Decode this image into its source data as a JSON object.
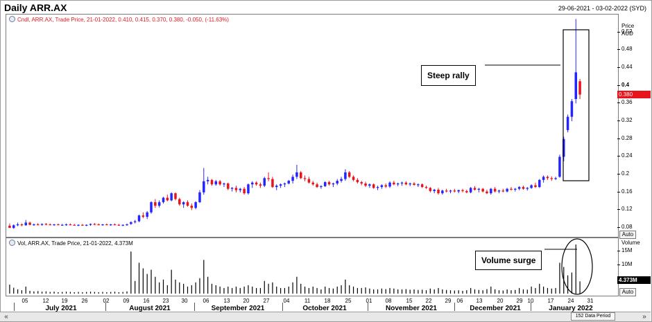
{
  "header": {
    "title": "Daily ARR.AX",
    "date_range": "29-06-2021 - 03-02-2022 (SYD)"
  },
  "price_panel": {
    "legend": "Cndl, ARR.AX, Trade Price, 21-01-2022, 0.410, 0.415, 0.370, 0.380, -0.050, (-11.63%)",
    "axis_title_1": "Price",
    "axis_title_2": "AUD",
    "current_price_label": "0.380",
    "auto_label": "Auto",
    "y_ticks": [
      {
        "v": 0.52,
        "label": "0.52"
      },
      {
        "v": 0.48,
        "label": "0.48"
      },
      {
        "v": 0.44,
        "label": "0.44"
      },
      {
        "v": 0.4,
        "label": "0.4"
      },
      {
        "v": 0.36,
        "label": "0.36"
      },
      {
        "v": 0.32,
        "label": "0.32"
      },
      {
        "v": 0.28,
        "label": "0.28"
      },
      {
        "v": 0.24,
        "label": "0.24"
      },
      {
        "v": 0.2,
        "label": "0.2"
      },
      {
        "v": 0.16,
        "label": "0.16"
      },
      {
        "v": 0.12,
        "label": "0.12"
      },
      {
        "v": 0.08,
        "label": "0.08"
      }
    ],
    "annotation": "Steep rally"
  },
  "volume_panel": {
    "legend": "Vol, ARR.AX, Trade Price, 21-01-2022, 4.373M",
    "axis_title": "Volume",
    "y_ticks": [
      {
        "v": 15,
        "label": "15M"
      },
      {
        "v": 10,
        "label": "10M"
      }
    ],
    "current_volume_label": "4.373M",
    "auto_label": "Auto",
    "annotation": "Volume surge"
  },
  "x_axis": {
    "day_labels": [
      "05",
      "12",
      "19",
      "26",
      "02",
      "09",
      "16",
      "23",
      "30",
      "06",
      "13",
      "20",
      "27",
      "04",
      "11",
      "18",
      "25",
      "01",
      "08",
      "15",
      "22",
      "29",
      "06",
      "13",
      "20",
      "29",
      "10",
      "17",
      "24",
      "31"
    ],
    "month_labels": [
      "July 2021",
      "August 2021",
      "September 2021",
      "October 2021",
      "November 2021",
      "December 2021",
      "January 2022"
    ]
  },
  "status_bar": {
    "period_label": "152 Data Period",
    "scroll_left": "«",
    "scroll_right": "»"
  },
  "colors": {
    "up": "#2424ff",
    "down": "#e8141c",
    "last_price": "#e8141c"
  },
  "chart_data": {
    "type": "candlestick",
    "ylim": [
      0.06,
      0.56
    ],
    "volume_ylim_millions": [
      0,
      19
    ],
    "candles": [
      {
        "o": 0.085,
        "h": 0.09,
        "l": 0.082,
        "c": 0.08,
        "v": 3.2
      },
      {
        "o": 0.08,
        "h": 0.088,
        "l": 0.078,
        "c": 0.086,
        "v": 2.1
      },
      {
        "o": 0.086,
        "h": 0.092,
        "l": 0.084,
        "c": 0.088,
        "v": 1.5
      },
      {
        "o": 0.088,
        "h": 0.09,
        "l": 0.084,
        "c": 0.086,
        "v": 1.2
      },
      {
        "o": 0.086,
        "h": 0.098,
        "l": 0.085,
        "c": 0.092,
        "v": 2.5
      },
      {
        "o": 0.092,
        "h": 0.094,
        "l": 0.086,
        "c": 0.087,
        "v": 1.0
      },
      {
        "o": 0.087,
        "h": 0.09,
        "l": 0.085,
        "c": 0.088,
        "v": 0.8
      },
      {
        "o": 0.088,
        "h": 0.091,
        "l": 0.086,
        "c": 0.087,
        "v": 0.9
      },
      {
        "o": 0.087,
        "h": 0.09,
        "l": 0.085,
        "c": 0.089,
        "v": 0.7
      },
      {
        "o": 0.089,
        "h": 0.091,
        "l": 0.086,
        "c": 0.088,
        "v": 0.8
      },
      {
        "o": 0.088,
        "h": 0.09,
        "l": 0.086,
        "c": 0.087,
        "v": 0.6
      },
      {
        "o": 0.087,
        "h": 0.089,
        "l": 0.085,
        "c": 0.088,
        "v": 0.7
      },
      {
        "o": 0.088,
        "h": 0.09,
        "l": 0.086,
        "c": 0.087,
        "v": 0.5
      },
      {
        "o": 0.087,
        "h": 0.089,
        "l": 0.085,
        "c": 0.087,
        "v": 0.6
      },
      {
        "o": 0.087,
        "h": 0.09,
        "l": 0.085,
        "c": 0.088,
        "v": 0.7
      },
      {
        "o": 0.088,
        "h": 0.09,
        "l": 0.086,
        "c": 0.087,
        "v": 0.6
      },
      {
        "o": 0.087,
        "h": 0.089,
        "l": 0.085,
        "c": 0.086,
        "v": 0.5
      },
      {
        "o": 0.086,
        "h": 0.088,
        "l": 0.084,
        "c": 0.087,
        "v": 0.6
      },
      {
        "o": 0.087,
        "h": 0.089,
        "l": 0.085,
        "c": 0.086,
        "v": 0.5
      },
      {
        "o": 0.086,
        "h": 0.088,
        "l": 0.084,
        "c": 0.087,
        "v": 0.6
      },
      {
        "o": 0.087,
        "h": 0.09,
        "l": 0.085,
        "c": 0.089,
        "v": 0.7
      },
      {
        "o": 0.089,
        "h": 0.091,
        "l": 0.086,
        "c": 0.088,
        "v": 0.6
      },
      {
        "o": 0.088,
        "h": 0.09,
        "l": 0.086,
        "c": 0.087,
        "v": 0.5
      },
      {
        "o": 0.087,
        "h": 0.089,
        "l": 0.085,
        "c": 0.088,
        "v": 0.6
      },
      {
        "o": 0.088,
        "h": 0.09,
        "l": 0.086,
        "c": 0.087,
        "v": 0.5
      },
      {
        "o": 0.087,
        "h": 0.089,
        "l": 0.085,
        "c": 0.088,
        "v": 0.6
      },
      {
        "o": 0.088,
        "h": 0.09,
        "l": 0.086,
        "c": 0.087,
        "v": 0.7
      },
      {
        "o": 0.087,
        "h": 0.089,
        "l": 0.085,
        "c": 0.086,
        "v": 0.5
      },
      {
        "o": 0.086,
        "h": 0.088,
        "l": 0.084,
        "c": 0.087,
        "v": 0.6
      },
      {
        "o": 0.087,
        "h": 0.09,
        "l": 0.085,
        "c": 0.088,
        "v": 0.8
      },
      {
        "o": 0.089,
        "h": 0.095,
        "l": 0.087,
        "c": 0.093,
        "v": 15.0
      },
      {
        "o": 0.093,
        "h": 0.098,
        "l": 0.09,
        "c": 0.095,
        "v": 4.5
      },
      {
        "o": 0.095,
        "h": 0.11,
        "l": 0.093,
        "c": 0.108,
        "v": 11.0
      },
      {
        "o": 0.108,
        "h": 0.115,
        "l": 0.102,
        "c": 0.105,
        "v": 9.0
      },
      {
        "o": 0.105,
        "h": 0.118,
        "l": 0.1,
        "c": 0.115,
        "v": 7.0
      },
      {
        "o": 0.115,
        "h": 0.14,
        "l": 0.112,
        "c": 0.138,
        "v": 8.5
      },
      {
        "o": 0.138,
        "h": 0.145,
        "l": 0.125,
        "c": 0.13,
        "v": 6.0
      },
      {
        "o": 0.13,
        "h": 0.142,
        "l": 0.126,
        "c": 0.138,
        "v": 4.0
      },
      {
        "o": 0.138,
        "h": 0.15,
        "l": 0.135,
        "c": 0.148,
        "v": 5.0
      },
      {
        "o": 0.148,
        "h": 0.155,
        "l": 0.14,
        "c": 0.142,
        "v": 3.0
      },
      {
        "o": 0.142,
        "h": 0.16,
        "l": 0.14,
        "c": 0.158,
        "v": 8.5
      },
      {
        "o": 0.158,
        "h": 0.16,
        "l": 0.142,
        "c": 0.145,
        "v": 5.0
      },
      {
        "o": 0.145,
        "h": 0.148,
        "l": 0.13,
        "c": 0.133,
        "v": 4.0
      },
      {
        "o": 0.133,
        "h": 0.14,
        "l": 0.125,
        "c": 0.138,
        "v": 3.5
      },
      {
        "o": 0.138,
        "h": 0.142,
        "l": 0.128,
        "c": 0.13,
        "v": 2.5
      },
      {
        "o": 0.13,
        "h": 0.135,
        "l": 0.12,
        "c": 0.125,
        "v": 3.0
      },
      {
        "o": 0.125,
        "h": 0.14,
        "l": 0.122,
        "c": 0.138,
        "v": 4.0
      },
      {
        "o": 0.138,
        "h": 0.165,
        "l": 0.136,
        "c": 0.16,
        "v": 5.5
      },
      {
        "o": 0.16,
        "h": 0.215,
        "l": 0.155,
        "c": 0.185,
        "v": 12.0
      },
      {
        "o": 0.185,
        "h": 0.195,
        "l": 0.178,
        "c": 0.188,
        "v": 6.0
      },
      {
        "o": 0.188,
        "h": 0.19,
        "l": 0.175,
        "c": 0.178,
        "v": 3.5
      },
      {
        "o": 0.178,
        "h": 0.188,
        "l": 0.175,
        "c": 0.185,
        "v": 3.0
      },
      {
        "o": 0.185,
        "h": 0.188,
        "l": 0.175,
        "c": 0.178,
        "v": 2.5
      },
      {
        "o": 0.178,
        "h": 0.182,
        "l": 0.172,
        "c": 0.18,
        "v": 2.0
      },
      {
        "o": 0.18,
        "h": 0.182,
        "l": 0.165,
        "c": 0.168,
        "v": 2.5
      },
      {
        "o": 0.168,
        "h": 0.172,
        "l": 0.162,
        "c": 0.17,
        "v": 2.0
      },
      {
        "o": 0.17,
        "h": 0.175,
        "l": 0.16,
        "c": 0.165,
        "v": 2.5
      },
      {
        "o": 0.165,
        "h": 0.17,
        "l": 0.16,
        "c": 0.168,
        "v": 2.0
      },
      {
        "o": 0.168,
        "h": 0.172,
        "l": 0.155,
        "c": 0.158,
        "v": 2.5
      },
      {
        "o": 0.158,
        "h": 0.18,
        "l": 0.155,
        "c": 0.178,
        "v": 3.0
      },
      {
        "o": 0.178,
        "h": 0.185,
        "l": 0.17,
        "c": 0.182,
        "v": 2.5
      },
      {
        "o": 0.182,
        "h": 0.185,
        "l": 0.175,
        "c": 0.178,
        "v": 2.0
      },
      {
        "o": 0.178,
        "h": 0.182,
        "l": 0.17,
        "c": 0.175,
        "v": 2.0
      },
      {
        "o": 0.175,
        "h": 0.195,
        "l": 0.172,
        "c": 0.192,
        "v": 4.5
      },
      {
        "o": 0.192,
        "h": 0.205,
        "l": 0.185,
        "c": 0.19,
        "v": 3.5
      },
      {
        "o": 0.19,
        "h": 0.195,
        "l": 0.17,
        "c": 0.172,
        "v": 4.0
      },
      {
        "o": 0.172,
        "h": 0.178,
        "l": 0.165,
        "c": 0.175,
        "v": 2.5
      },
      {
        "o": 0.175,
        "h": 0.18,
        "l": 0.17,
        "c": 0.178,
        "v": 2.0
      },
      {
        "o": 0.178,
        "h": 0.182,
        "l": 0.172,
        "c": 0.18,
        "v": 2.0
      },
      {
        "o": 0.18,
        "h": 0.188,
        "l": 0.178,
        "c": 0.186,
        "v": 2.5
      },
      {
        "o": 0.186,
        "h": 0.2,
        "l": 0.18,
        "c": 0.195,
        "v": 4.0
      },
      {
        "o": 0.195,
        "h": 0.222,
        "l": 0.19,
        "c": 0.205,
        "v": 6.0
      },
      {
        "o": 0.205,
        "h": 0.208,
        "l": 0.19,
        "c": 0.192,
        "v": 3.5
      },
      {
        "o": 0.192,
        "h": 0.198,
        "l": 0.185,
        "c": 0.19,
        "v": 2.5
      },
      {
        "o": 0.19,
        "h": 0.195,
        "l": 0.18,
        "c": 0.182,
        "v": 2.0
      },
      {
        "o": 0.182,
        "h": 0.186,
        "l": 0.175,
        "c": 0.178,
        "v": 2.5
      },
      {
        "o": 0.178,
        "h": 0.182,
        "l": 0.17,
        "c": 0.172,
        "v": 2.0
      },
      {
        "o": 0.172,
        "h": 0.176,
        "l": 0.168,
        "c": 0.174,
        "v": 1.5
      },
      {
        "o": 0.174,
        "h": 0.185,
        "l": 0.172,
        "c": 0.183,
        "v": 2.5
      },
      {
        "o": 0.183,
        "h": 0.186,
        "l": 0.175,
        "c": 0.178,
        "v": 2.0
      },
      {
        "o": 0.178,
        "h": 0.182,
        "l": 0.172,
        "c": 0.18,
        "v": 1.8
      },
      {
        "o": 0.18,
        "h": 0.19,
        "l": 0.176,
        "c": 0.186,
        "v": 2.5
      },
      {
        "o": 0.186,
        "h": 0.195,
        "l": 0.182,
        "c": 0.19,
        "v": 3.0
      },
      {
        "o": 0.19,
        "h": 0.212,
        "l": 0.186,
        "c": 0.205,
        "v": 5.0
      },
      {
        "o": 0.205,
        "h": 0.208,
        "l": 0.192,
        "c": 0.195,
        "v": 3.0
      },
      {
        "o": 0.195,
        "h": 0.198,
        "l": 0.185,
        "c": 0.188,
        "v": 2.5
      },
      {
        "o": 0.188,
        "h": 0.192,
        "l": 0.18,
        "c": 0.183,
        "v": 2.0
      },
      {
        "o": 0.183,
        "h": 0.186,
        "l": 0.176,
        "c": 0.18,
        "v": 2.0
      },
      {
        "o": 0.18,
        "h": 0.184,
        "l": 0.172,
        "c": 0.175,
        "v": 2.2
      },
      {
        "o": 0.175,
        "h": 0.18,
        "l": 0.17,
        "c": 0.178,
        "v": 1.8
      },
      {
        "o": 0.178,
        "h": 0.18,
        "l": 0.168,
        "c": 0.17,
        "v": 1.5
      },
      {
        "o": 0.17,
        "h": 0.175,
        "l": 0.165,
        "c": 0.172,
        "v": 1.5
      },
      {
        "o": 0.172,
        "h": 0.178,
        "l": 0.168,
        "c": 0.176,
        "v": 1.8
      },
      {
        "o": 0.176,
        "h": 0.18,
        "l": 0.17,
        "c": 0.173,
        "v": 1.6
      },
      {
        "o": 0.173,
        "h": 0.185,
        "l": 0.17,
        "c": 0.182,
        "v": 2.0
      },
      {
        "o": 0.182,
        "h": 0.186,
        "l": 0.176,
        "c": 0.178,
        "v": 1.8
      },
      {
        "o": 0.178,
        "h": 0.182,
        "l": 0.174,
        "c": 0.18,
        "v": 1.5
      },
      {
        "o": 0.18,
        "h": 0.184,
        "l": 0.175,
        "c": 0.182,
        "v": 1.5
      },
      {
        "o": 0.182,
        "h": 0.185,
        "l": 0.176,
        "c": 0.178,
        "v": 1.6
      },
      {
        "o": 0.178,
        "h": 0.182,
        "l": 0.174,
        "c": 0.18,
        "v": 1.4
      },
      {
        "o": 0.18,
        "h": 0.183,
        "l": 0.175,
        "c": 0.177,
        "v": 1.5
      },
      {
        "o": 0.177,
        "h": 0.18,
        "l": 0.172,
        "c": 0.178,
        "v": 1.3
      },
      {
        "o": 0.178,
        "h": 0.18,
        "l": 0.17,
        "c": 0.172,
        "v": 1.4
      },
      {
        "o": 0.172,
        "h": 0.175,
        "l": 0.168,
        "c": 0.17,
        "v": 1.2
      },
      {
        "o": 0.17,
        "h": 0.172,
        "l": 0.16,
        "c": 0.163,
        "v": 1.8
      },
      {
        "o": 0.163,
        "h": 0.168,
        "l": 0.158,
        "c": 0.166,
        "v": 1.5
      },
      {
        "o": 0.166,
        "h": 0.17,
        "l": 0.155,
        "c": 0.158,
        "v": 2.0
      },
      {
        "o": 0.158,
        "h": 0.166,
        "l": 0.155,
        "c": 0.164,
        "v": 1.5
      },
      {
        "o": 0.164,
        "h": 0.168,
        "l": 0.16,
        "c": 0.162,
        "v": 1.3
      },
      {
        "o": 0.162,
        "h": 0.166,
        "l": 0.158,
        "c": 0.164,
        "v": 1.2
      },
      {
        "o": 0.164,
        "h": 0.168,
        "l": 0.16,
        "c": 0.162,
        "v": 1.1
      },
      {
        "o": 0.162,
        "h": 0.166,
        "l": 0.158,
        "c": 0.165,
        "v": 1.2
      },
      {
        "o": 0.165,
        "h": 0.168,
        "l": 0.16,
        "c": 0.163,
        "v": 1.0
      },
      {
        "o": 0.163,
        "h": 0.166,
        "l": 0.158,
        "c": 0.16,
        "v": 1.2
      },
      {
        "o": 0.16,
        "h": 0.172,
        "l": 0.158,
        "c": 0.17,
        "v": 2.0
      },
      {
        "o": 0.17,
        "h": 0.174,
        "l": 0.164,
        "c": 0.166,
        "v": 1.5
      },
      {
        "o": 0.166,
        "h": 0.17,
        "l": 0.16,
        "c": 0.168,
        "v": 1.3
      },
      {
        "o": 0.168,
        "h": 0.17,
        "l": 0.16,
        "c": 0.162,
        "v": 1.2
      },
      {
        "o": 0.162,
        "h": 0.166,
        "l": 0.156,
        "c": 0.158,
        "v": 1.6
      },
      {
        "o": 0.158,
        "h": 0.17,
        "l": 0.155,
        "c": 0.168,
        "v": 2.5
      },
      {
        "o": 0.168,
        "h": 0.172,
        "l": 0.16,
        "c": 0.162,
        "v": 1.5
      },
      {
        "o": 0.162,
        "h": 0.166,
        "l": 0.158,
        "c": 0.164,
        "v": 1.2
      },
      {
        "o": 0.164,
        "h": 0.168,
        "l": 0.16,
        "c": 0.162,
        "v": 1.1
      },
      {
        "o": 0.162,
        "h": 0.17,
        "l": 0.16,
        "c": 0.168,
        "v": 1.5
      },
      {
        "o": 0.168,
        "h": 0.172,
        "l": 0.164,
        "c": 0.166,
        "v": 1.2
      },
      {
        "o": 0.166,
        "h": 0.17,
        "l": 0.162,
        "c": 0.168,
        "v": 1.3
      },
      {
        "o": 0.168,
        "h": 0.174,
        "l": 0.165,
        "c": 0.172,
        "v": 2.0
      },
      {
        "o": 0.172,
        "h": 0.175,
        "l": 0.166,
        "c": 0.168,
        "v": 1.5
      },
      {
        "o": 0.168,
        "h": 0.172,
        "l": 0.164,
        "c": 0.17,
        "v": 1.4
      },
      {
        "o": 0.17,
        "h": 0.178,
        "l": 0.168,
        "c": 0.176,
        "v": 2.5
      },
      {
        "o": 0.176,
        "h": 0.182,
        "l": 0.17,
        "c": 0.172,
        "v": 2.0
      },
      {
        "o": 0.172,
        "h": 0.19,
        "l": 0.17,
        "c": 0.188,
        "v": 3.5
      },
      {
        "o": 0.188,
        "h": 0.198,
        "l": 0.182,
        "c": 0.195,
        "v": 2.5
      },
      {
        "o": 0.195,
        "h": 0.198,
        "l": 0.188,
        "c": 0.192,
        "v": 2.0
      },
      {
        "o": 0.192,
        "h": 0.196,
        "l": 0.186,
        "c": 0.19,
        "v": 1.8
      },
      {
        "o": 0.19,
        "h": 0.195,
        "l": 0.188,
        "c": 0.192,
        "v": 2.0
      },
      {
        "o": 0.195,
        "h": 0.245,
        "l": 0.193,
        "c": 0.24,
        "v": 11.0
      },
      {
        "o": 0.24,
        "h": 0.285,
        "l": 0.23,
        "c": 0.28,
        "v": 9.5
      },
      {
        "o": 0.3,
        "h": 0.335,
        "l": 0.295,
        "c": 0.33,
        "v": 6.5
      },
      {
        "o": 0.33,
        "h": 0.37,
        "l": 0.32,
        "c": 0.365,
        "v": 7.5
      },
      {
        "o": 0.37,
        "h": 0.55,
        "l": 0.36,
        "c": 0.43,
        "v": 17.5
      },
      {
        "o": 0.41,
        "h": 0.415,
        "l": 0.37,
        "c": 0.38,
        "v": 4.373
      }
    ]
  }
}
